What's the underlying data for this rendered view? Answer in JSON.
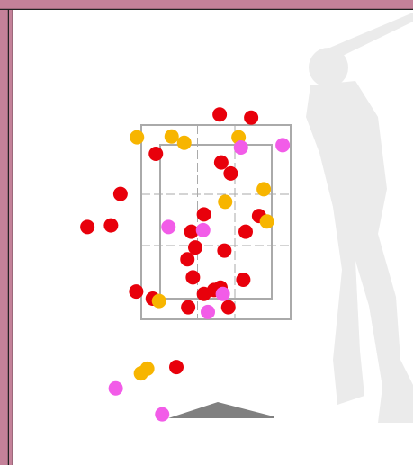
{
  "chart_data": {
    "type": "scatter",
    "xlim": [
      -2.6,
      2.4
    ],
    "ylim": [
      0,
      5.2
    ],
    "series": [
      {
        "color": "#e8000b",
        "x": [
          -0.01,
          0.39,
          -0.82,
          0.01,
          0.13,
          -1.27,
          -1.69,
          -1.39,
          -0.21,
          0.49,
          -0.37,
          0.32,
          -0.32,
          0.05,
          -0.42,
          -0.35,
          0.29,
          -1.07,
          -0.86,
          -0.08,
          -0.21,
          0.0,
          -0.41,
          0.1,
          -0.56
        ],
        "values": [
          3.86,
          3.82,
          3.36,
          3.25,
          3.11,
          2.85,
          2.43,
          2.45,
          2.59,
          2.57,
          2.37,
          2.37,
          2.17,
          2.13,
          2.02,
          1.79,
          1.76,
          1.61,
          1.52,
          1.63,
          1.58,
          1.66,
          1.41,
          1.41,
          0.65
        ]
      },
      {
        "color": "#f7b500",
        "x": [
          -1.06,
          -0.62,
          -0.46,
          0.23,
          0.55,
          0.06,
          0.59,
          -0.78,
          -1.01,
          -0.93
        ],
        "values": [
          3.57,
          3.58,
          3.5,
          3.57,
          2.91,
          2.75,
          2.5,
          1.49,
          0.57,
          0.63
        ]
      },
      {
        "color": "#f25ce8",
        "x": [
          0.79,
          0.26,
          -0.66,
          -0.22,
          0.03,
          -0.16,
          -1.33,
          -0.74
        ],
        "values": [
          3.47,
          3.44,
          2.43,
          2.39,
          1.58,
          1.35,
          0.38,
          0.05
        ]
      }
    ]
  }
}
